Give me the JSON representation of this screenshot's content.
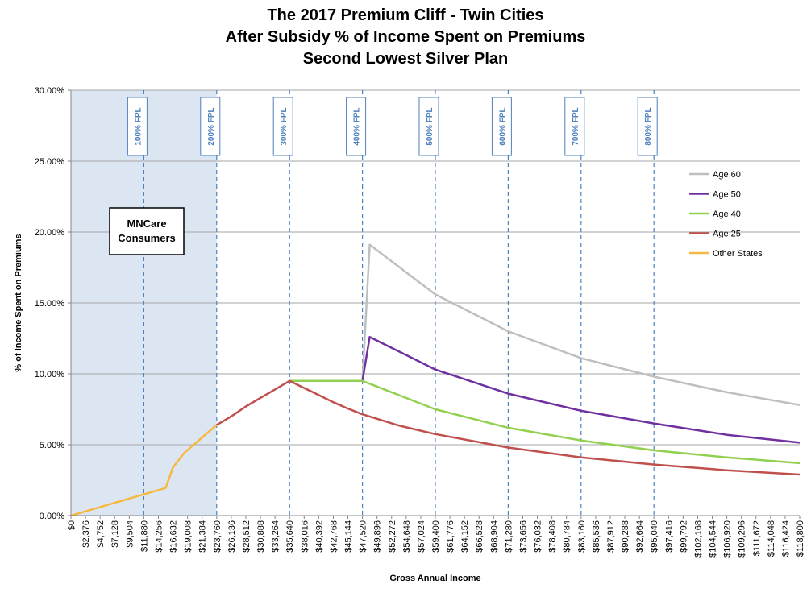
{
  "chart_data": {
    "type": "line",
    "title_lines": [
      "The 2017 Premium Cliff - Twin Cities",
      "After Subsidy % of Income Spent on Premiums",
      "Second Lowest Silver Plan"
    ],
    "xlabel": "Gross Annual Income",
    "ylabel": "% of Income Spent on Premiums",
    "ylim": [
      0,
      30
    ],
    "y_ticks": [
      "0.00%",
      "5.00%",
      "10.00%",
      "15.00%",
      "20.00%",
      "25.00%",
      "30.00%"
    ],
    "xlim": [
      0,
      118800
    ],
    "x_tick_step": 1188,
    "x_tick_labels": [
      "$0",
      "$2,376",
      "$4,752",
      "$7,128",
      "$9,504",
      "$11,880",
      "$14,256",
      "$16,632",
      "$19,008",
      "$21,384",
      "$23,760",
      "$26,136",
      "$28,512",
      "$30,888",
      "$33,264",
      "$35,640",
      "$38,016",
      "$40,392",
      "$42,768",
      "$45,144",
      "$47,520",
      "$49,896",
      "$52,272",
      "$54,648",
      "$57,024",
      "$59,400",
      "$61,776",
      "$64,152",
      "$66,528",
      "$68,904",
      "$71,280",
      "$73,656",
      "$76,032",
      "$78,408",
      "$80,784",
      "$83,160",
      "$85,536",
      "$87,912",
      "$90,288",
      "$92,664",
      "$95,040",
      "$97,416",
      "$99,792",
      "$102,168",
      "$104,544",
      "$106,920",
      "$109,296",
      "$111,672",
      "$114,048",
      "$116,424",
      "$118,800"
    ],
    "grid": true,
    "legend_position": "right",
    "shaded_region": {
      "x": [
        0,
        23760
      ],
      "color": "#dce6f2"
    },
    "shaded_label": [
      "MNCare",
      "Consumers"
    ],
    "fpl_lines": [
      {
        "x": 11880,
        "label": "100% FPL"
      },
      {
        "x": 23760,
        "label": "200% FPL"
      },
      {
        "x": 35640,
        "label": "300% FPL"
      },
      {
        "x": 47520,
        "label": "400% FPL"
      },
      {
        "x": 59400,
        "label": "500% FPL"
      },
      {
        "x": 71280,
        "label": "600% FPL"
      },
      {
        "x": 83160,
        "label": "700% FPL"
      },
      {
        "x": 95040,
        "label": "800% FPL"
      }
    ],
    "series": [
      {
        "name": "Age 60",
        "color": "#bfbfbf",
        "x": [
          35640,
          47520,
          48708,
          59400,
          71280,
          83160,
          95040,
          106920,
          118800
        ],
        "y": [
          9.5,
          9.5,
          19.1,
          15.6,
          13.0,
          11.1,
          9.8,
          8.7,
          7.8
        ]
      },
      {
        "name": "Age 50",
        "color": "#7030a0",
        "x": [
          35640,
          47520,
          48708,
          59400,
          71280,
          83160,
          95040,
          106920,
          118800
        ],
        "y": [
          9.5,
          9.5,
          12.6,
          10.3,
          8.6,
          7.4,
          6.5,
          5.7,
          5.15
        ]
      },
      {
        "name": "Age 40",
        "color": "#92d050",
        "x": [
          35640,
          47520,
          59400,
          71280,
          83160,
          95040,
          106920,
          118800
        ],
        "y": [
          9.5,
          9.5,
          7.5,
          6.2,
          5.3,
          4.6,
          4.1,
          3.7
        ]
      },
      {
        "name": "Age 25",
        "color": "#c0504d",
        "x": [
          23760,
          26136,
          28512,
          30888,
          33264,
          35640,
          38016,
          40392,
          42768,
          45144,
          47520,
          53460,
          59400,
          71280,
          83160,
          95040,
          106920,
          118800
        ],
        "y": [
          6.4,
          7.0,
          7.7,
          8.3,
          8.9,
          9.5,
          9.0,
          8.5,
          8.0,
          7.55,
          7.15,
          6.35,
          5.75,
          4.8,
          4.1,
          3.6,
          3.2,
          2.9
        ]
      },
      {
        "name": "Other States",
        "color": "#f5b942",
        "x": [
          0,
          11880,
          15444,
          16632,
          18414,
          23760
        ],
        "y": [
          0,
          1.5,
          1.95,
          3.4,
          4.4,
          6.4
        ]
      }
    ]
  }
}
